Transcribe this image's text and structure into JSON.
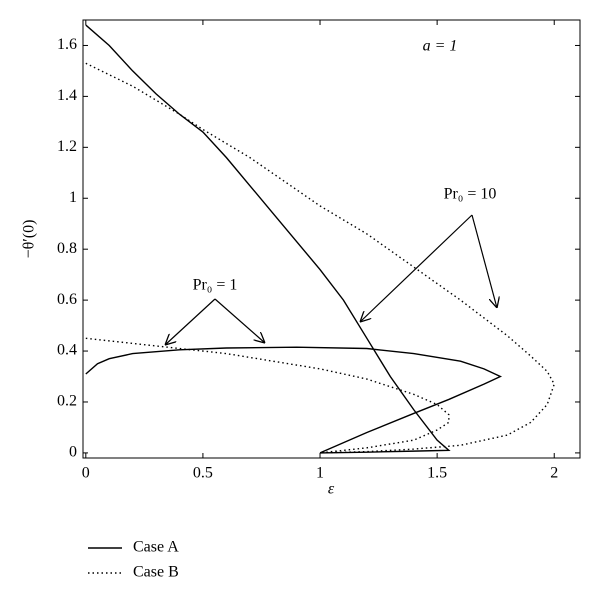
{
  "chart_data": {
    "type": "line",
    "annotations": [
      "a = 1",
      "Pr₀ = 10",
      "Pr₀ = 1"
    ],
    "x_label": "ε",
    "y_label": "−θ′(0)",
    "xlim": [
      -0.012,
      2.11
    ],
    "ylim": [
      -0.02,
      1.7
    ],
    "xticks": [
      0,
      0.5,
      1,
      1.5,
      2
    ],
    "yticks": [
      0,
      0.2,
      0.4,
      0.6,
      0.8,
      1,
      1.2,
      1.4,
      1.6
    ],
    "series": [
      {
        "name": "Case A",
        "color": "#000000",
        "line_style": "solid",
        "x": [
          0,
          0.1,
          0.2,
          0.3,
          0.4,
          0.5,
          0.6,
          0.7,
          0.8,
          0.9,
          1.0,
          1.1,
          1.2,
          1.3,
          1.4,
          1.5,
          1.55,
          1.4,
          1.2,
          1.0,
          null,
          0,
          0.05,
          0.1,
          0.2,
          0.4,
          0.6,
          0.9,
          1.2,
          1.4,
          1.6,
          1.7,
          1.77,
          1.7,
          1.55,
          1.4,
          1.2,
          1.0
        ],
        "values": [
          1.68,
          1.6,
          1.5,
          1.41,
          1.33,
          1.26,
          1.16,
          1.05,
          0.94,
          0.83,
          0.72,
          0.6,
          0.45,
          0.3,
          0.17,
          0.05,
          0.01,
          0.007,
          0.003,
          0,
          null,
          0.31,
          0.35,
          0.37,
          0.39,
          0.405,
          0.412,
          0.415,
          0.41,
          0.39,
          0.36,
          0.33,
          0.3,
          0.27,
          0.21,
          0.155,
          0.08,
          0
        ]
      },
      {
        "name": "Case B",
        "color": "#000000",
        "line_style": "dotted",
        "x": [
          0,
          0.2,
          0.4,
          0.5,
          0.7,
          1.0,
          1.2,
          1.4,
          1.6,
          1.8,
          1.9,
          1.97,
          2.0,
          1.97,
          1.9,
          1.8,
          1.6,
          1.4,
          1.2,
          1.0,
          null,
          0,
          0.2,
          0.4,
          0.6,
          0.8,
          1.0,
          1.2,
          1.4,
          1.5,
          1.55,
          1.55,
          1.5,
          1.4,
          1.2,
          1.0
        ],
        "values": [
          1.53,
          1.44,
          1.33,
          1.27,
          1.16,
          0.97,
          0.86,
          0.73,
          0.6,
          0.46,
          0.38,
          0.32,
          0.27,
          0.19,
          0.12,
          0.07,
          0.03,
          0.015,
          0.005,
          0,
          null,
          0.45,
          0.43,
          0.41,
          0.39,
          0.36,
          0.33,
          0.29,
          0.23,
          0.19,
          0.15,
          0.12,
          0.09,
          0.05,
          0.02,
          0
        ]
      }
    ]
  }
}
